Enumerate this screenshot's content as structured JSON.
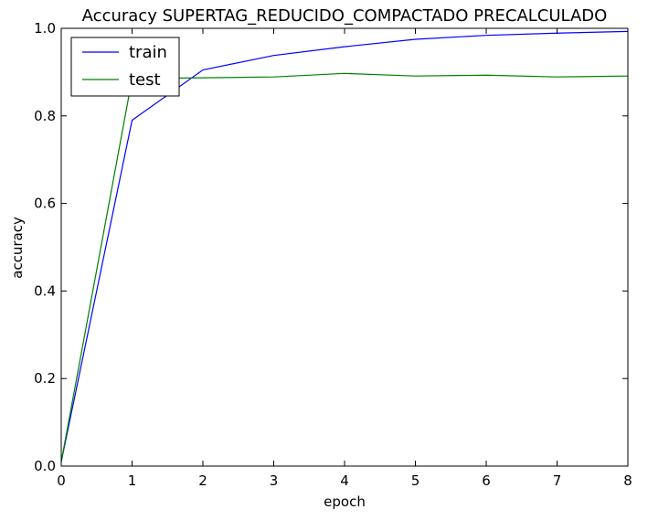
{
  "chart_data": {
    "type": "line",
    "title": "Accuracy SUPERTAG_REDUCIDO_COMPACTADO PRECALCULADO",
    "xlabel": "epoch",
    "ylabel": "accuracy",
    "xlim": [
      0,
      8
    ],
    "ylim": [
      0.0,
      1.0
    ],
    "x_ticks": [
      "0",
      "1",
      "2",
      "3",
      "4",
      "5",
      "6",
      "7",
      "8"
    ],
    "y_ticks": [
      "0.0",
      "0.2",
      "0.4",
      "0.6",
      "0.8",
      "1.0"
    ],
    "grid": false,
    "legend_position": "top-left",
    "x": [
      0,
      1,
      2,
      3,
      4,
      5,
      6,
      7,
      8
    ],
    "series": [
      {
        "name": "train",
        "color": "#0000ff",
        "values": [
          0.01,
          0.79,
          0.905,
          0.938,
          0.958,
          0.975,
          0.984,
          0.989,
          0.993
        ]
      },
      {
        "name": "test",
        "color": "#008000",
        "values": [
          0.01,
          0.885,
          0.887,
          0.889,
          0.897,
          0.891,
          0.893,
          0.889,
          0.891
        ]
      }
    ]
  }
}
